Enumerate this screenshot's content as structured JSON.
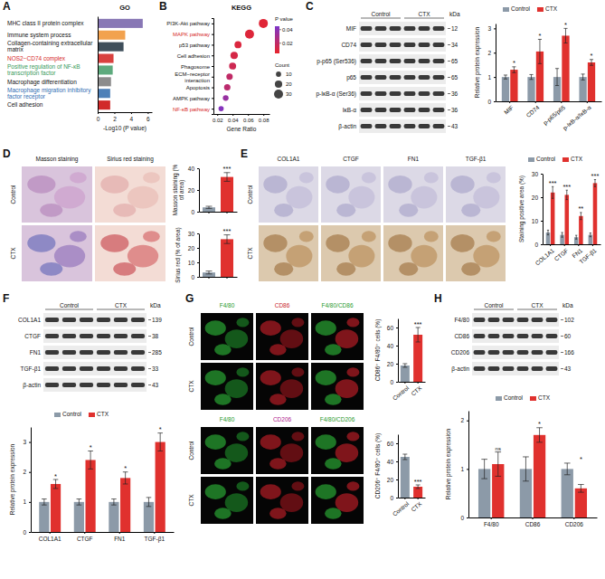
{
  "panel_letters": [
    "A",
    "B",
    "C",
    "D",
    "E",
    "F",
    "G",
    "H"
  ],
  "chart_data": [
    {
      "type": "bar",
      "orientation": "horizontal",
      "title": "GO",
      "categories": [
        "MHC class II protein complex",
        "Immune system process",
        "Collagen-containing extracellular matrix",
        "NOS2−CD74 complex",
        "Positive regulation of NF-κB transcription factor",
        "Macrophage differentiation",
        "Macrophage migration inhibitory factor receptor",
        "Cell adhesion"
      ],
      "values": [
        5.4,
        3.3,
        3.1,
        1.9,
        1.8,
        1.6,
        1.5,
        1.5
      ],
      "colors": [
        "#8877b5",
        "#f2a24e",
        "#3f4f5b",
        "#d9413f",
        "#5daa7d",
        "#8c8c8c",
        "#4d80b8",
        "#d12a2a"
      ],
      "xlabel": "-Log10 (P value)",
      "xlim": [
        0,
        6.5
      ],
      "xticks": [
        0,
        2,
        4,
        6
      ]
    },
    {
      "type": "scatter",
      "title": "KEGG",
      "categories": [
        "PI3K-Akt pathway",
        "MAPK pathway",
        "p53 pathway",
        "Cell adhesion",
        "Phagosome",
        "ECM−receptor interaction",
        "Apoptosis",
        "AMPK pathway",
        "NF-κB pathway"
      ],
      "values": [
        0.08,
        0.062,
        0.047,
        0.042,
        0.04,
        0.036,
        0.033,
        0.031,
        0.025
      ],
      "count": [
        30,
        30,
        18,
        20,
        18,
        15,
        15,
        12,
        10
      ],
      "p_value": [
        0.008,
        0.009,
        0.01,
        0.012,
        0.015,
        0.02,
        0.022,
        0.035,
        0.042
      ],
      "xlabel": "Gene Ratio",
      "xlim": [
        0.015,
        0.088
      ],
      "xticks": [
        0.02,
        0.04,
        0.06,
        0.08
      ],
      "colorbar": {
        "title": "P value",
        "range": [
          0.005,
          0.045
        ],
        "ticks": [
          0.02,
          0.04
        ]
      },
      "size_legend": {
        "title": "Count",
        "values": [
          10,
          20,
          30
        ]
      }
    },
    {
      "type": "bar",
      "categories": [
        "MIF",
        "CD74",
        "p-p65/p65",
        "p-IκB-α/IκB-α"
      ],
      "series": [
        {
          "name": "Control",
          "color": "#8c9aa8",
          "values": [
            1,
            1,
            1,
            1
          ],
          "errors": [
            0.08,
            0.1,
            0.35,
            0.12
          ]
        },
        {
          "name": "CTX",
          "color": "#e0312e",
          "values": [
            1.3,
            2.05,
            2.7,
            1.6
          ],
          "errors": [
            0.12,
            0.5,
            0.3,
            0.12
          ]
        }
      ],
      "ylabel": "Relative protein expression",
      "ylim": [
        0,
        3.2
      ],
      "yticks": [
        0,
        1,
        2,
        3
      ],
      "annotations": [
        "*",
        "*",
        "*",
        "*"
      ],
      "legend": "top"
    },
    {
      "type": "bar",
      "categories": [
        null,
        null
      ],
      "values": [
        4,
        32
      ],
      "errors": [
        1,
        4
      ],
      "colors": [
        "#8c9aa8",
        "#e0312e"
      ],
      "ylabel": "Masson staining (% of area)",
      "ylim": [
        0,
        40
      ],
      "yticks": [
        0,
        20,
        40
      ],
      "annotation": "***",
      "tick_labels": "y"
    },
    {
      "type": "bar",
      "categories": [
        null,
        null
      ],
      "values": [
        3,
        26
      ],
      "errors": [
        1,
        3
      ],
      "colors": [
        "#8c9aa8",
        "#e0312e"
      ],
      "ylabel": "Sirius red (% of area)",
      "ylim": [
        0,
        30
      ],
      "yticks": [
        0,
        10,
        20,
        30
      ],
      "annotation": "***",
      "tick_labels": "y"
    },
    {
      "type": "bar",
      "categories": [
        "COL1A1",
        "CTGF",
        "FN1",
        "TGF-β1"
      ],
      "series": [
        {
          "name": "Control",
          "color": "#8c9aa8",
          "values": [
            5,
            4,
            3,
            4
          ],
          "errors": [
            1,
            1,
            0.8,
            0.8
          ]
        },
        {
          "name": "CTX",
          "color": "#e0312e",
          "values": [
            22,
            21,
            12,
            26
          ],
          "errors": [
            2.5,
            2,
            1.5,
            1.5
          ]
        }
      ],
      "ylabel": "Staining positive area (%)",
      "ylim": [
        0,
        30
      ],
      "yticks": [
        0,
        10,
        20,
        30
      ],
      "annotations": [
        "***",
        "***",
        "**",
        "***"
      ],
      "legend": "top"
    },
    {
      "type": "bar",
      "categories": [
        "COL1A1",
        "CTGF",
        "FN1",
        "TGF-β1"
      ],
      "series": [
        {
          "name": "Control",
          "color": "#8c9aa8",
          "values": [
            1,
            1,
            1,
            1
          ],
          "errors": [
            0.1,
            0.1,
            0.1,
            0.15
          ]
        },
        {
          "name": "CTX",
          "color": "#e0312e",
          "values": [
            1.6,
            2.4,
            1.8,
            3.0
          ],
          "errors": [
            0.15,
            0.3,
            0.2,
            0.3
          ]
        }
      ],
      "ylabel": "Relative protein expression",
      "ylim": [
        0,
        3.5
      ],
      "yticks": [
        0,
        1,
        2,
        3
      ],
      "annotations": [
        "*",
        "*",
        "*",
        "*"
      ],
      "legend": "top"
    },
    {
      "type": "bar",
      "categories": [
        "Control",
        "CTX"
      ],
      "values": [
        18,
        52
      ],
      "errors": [
        2,
        8
      ],
      "colors": [
        "#8c9aa8",
        "#e0312e"
      ],
      "ylabel": "CD86⁺ F4/80⁺ cells (%)",
      "ylim": [
        0,
        70
      ],
      "yticks": [
        0,
        20,
        40,
        60
      ],
      "annotation": "***"
    },
    {
      "type": "bar",
      "categories": [
        "Control",
        "CTX"
      ],
      "values": [
        45,
        12
      ],
      "errors": [
        3,
        2
      ],
      "colors": [
        "#8c9aa8",
        "#e0312e"
      ],
      "ylabel": "CD206⁺ F4/80⁺ cells (%)",
      "ylim": [
        0,
        70
      ],
      "yticks": [
        0,
        20,
        40,
        60
      ],
      "annotation": "***"
    },
    {
      "type": "bar",
      "categories": [
        "F4/80",
        "CD86",
        "CD206"
      ],
      "series": [
        {
          "name": "Control",
          "color": "#8c9aa8",
          "values": [
            1,
            1,
            1
          ],
          "errors": [
            0.2,
            0.25,
            0.12
          ]
        },
        {
          "name": "CTX",
          "color": "#e0312e",
          "values": [
            1.1,
            1.7,
            0.6
          ],
          "errors": [
            0.25,
            0.15,
            0.08
          ]
        }
      ],
      "ylabel": "Relative protein expression",
      "ylim": [
        0,
        2.2
      ],
      "yticks": [
        0,
        1,
        2
      ],
      "annotations": [
        "ns",
        "*",
        "*"
      ],
      "legend": "top"
    }
  ],
  "blots": {
    "C": {
      "groups": [
        "Control",
        "CTX"
      ],
      "unit": "kDa",
      "rows": [
        {
          "label": "MIF",
          "kda": 12
        },
        {
          "label": "CD74",
          "kda": 34
        },
        {
          "label": "p-p65 (Ser536)",
          "kda": 65
        },
        {
          "label": "p65",
          "kda": 65
        },
        {
          "label": "p-IκB-α (Ser36)",
          "kda": 36
        },
        {
          "label": "IκB-α",
          "kda": 36
        },
        {
          "label": "β-actin",
          "kda": 43
        }
      ]
    },
    "F": {
      "groups": [
        "Control",
        "CTX"
      ],
      "unit": "kDa",
      "rows": [
        {
          "label": "COL1A1",
          "kda": 139
        },
        {
          "label": "CTGF",
          "kda": 38
        },
        {
          "label": "FN1",
          "kda": 285
        },
        {
          "label": "TGF-β1",
          "kda": 33
        },
        {
          "label": "β-actin",
          "kda": 43
        }
      ]
    },
    "H": {
      "groups": [
        "Control",
        "CTX"
      ],
      "unit": "kDa",
      "rows": [
        {
          "label": "F4/80",
          "kda": 102
        },
        {
          "label": "CD86",
          "kda": 60
        },
        {
          "label": "CD206",
          "kda": 166
        },
        {
          "label": "β-actin",
          "kda": 43
        }
      ]
    }
  },
  "images": {
    "D": [
      {
        "columns": [
          "Masson staining",
          "Sirius red staining"
        ],
        "rows": [
          "Control",
          "CTX"
        ]
      }
    ],
    "E": [
      {
        "columns": [
          "COL1A1",
          "CTGF",
          "FN1",
          "TGF-β1"
        ],
        "rows": [
          "Control",
          "CTX"
        ]
      }
    ],
    "G": [
      {
        "columns": [
          "F4/80",
          "CD86",
          "F4/80/CD86"
        ],
        "rows": [
          "Control",
          "CTX"
        ]
      },
      {
        "columns": [
          "F4/80",
          "CD206",
          "F4/80/CD206"
        ],
        "rows": [
          "Control",
          "CTX"
        ]
      }
    ]
  }
}
